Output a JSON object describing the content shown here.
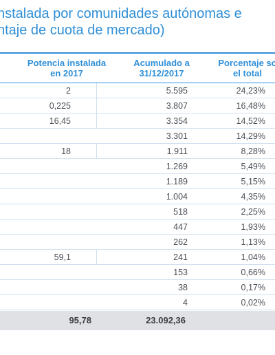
{
  "title": {
    "line1": "nstalada por comunidades autónomas e",
    "line2": "ntaje de cuota de mercado)"
  },
  "headers": {
    "col1_line1": "Potencia instalada",
    "col1_line2": "en 2017",
    "col2_line1": "Acumulado a",
    "col2_line2": "31/12/2017",
    "col3_line1": "Porcentaje so",
    "col3_line2": "el total"
  },
  "rows": [
    {
      "installed": "2",
      "cumulative": "5.595",
      "percent": "24,23%"
    },
    {
      "installed": "0,225",
      "cumulative": "3.807",
      "percent": "16,48%"
    },
    {
      "installed": "16,45",
      "cumulative": "3.354",
      "percent": "14,52%"
    },
    {
      "installed": "",
      "cumulative": "3.301",
      "percent": "14,29%"
    },
    {
      "installed": "18",
      "cumulative": "1.911",
      "percent": "8,28%"
    },
    {
      "installed": "",
      "cumulative": "1.269",
      "percent": "5,49%"
    },
    {
      "installed": "",
      "cumulative": "1.189",
      "percent": "5,15%"
    },
    {
      "installed": "",
      "cumulative": "1.004",
      "percent": "4,35%"
    },
    {
      "installed": "",
      "cumulative": "518",
      "percent": "2,25%"
    },
    {
      "installed": "",
      "cumulative": "447",
      "percent": "1,93%"
    },
    {
      "installed": "",
      "cumulative": "262",
      "percent": "1,13%"
    },
    {
      "installed": "59,1",
      "cumulative": "241",
      "percent": "1,04%"
    },
    {
      "installed": "",
      "cumulative": "153",
      "percent": "0,66%"
    },
    {
      "installed": "",
      "cumulative": "38",
      "percent": "0,17%"
    },
    {
      "installed": "",
      "cumulative": "4",
      "percent": "0,02%"
    }
  ],
  "total": {
    "installed": "95,78",
    "cumulative": "23.092,36",
    "percent": ""
  },
  "colors": {
    "accent": "#2f8fd8",
    "text": "#4a4f55",
    "row_separator": "#cfe0ef",
    "total_background": "#dfe1e4"
  }
}
